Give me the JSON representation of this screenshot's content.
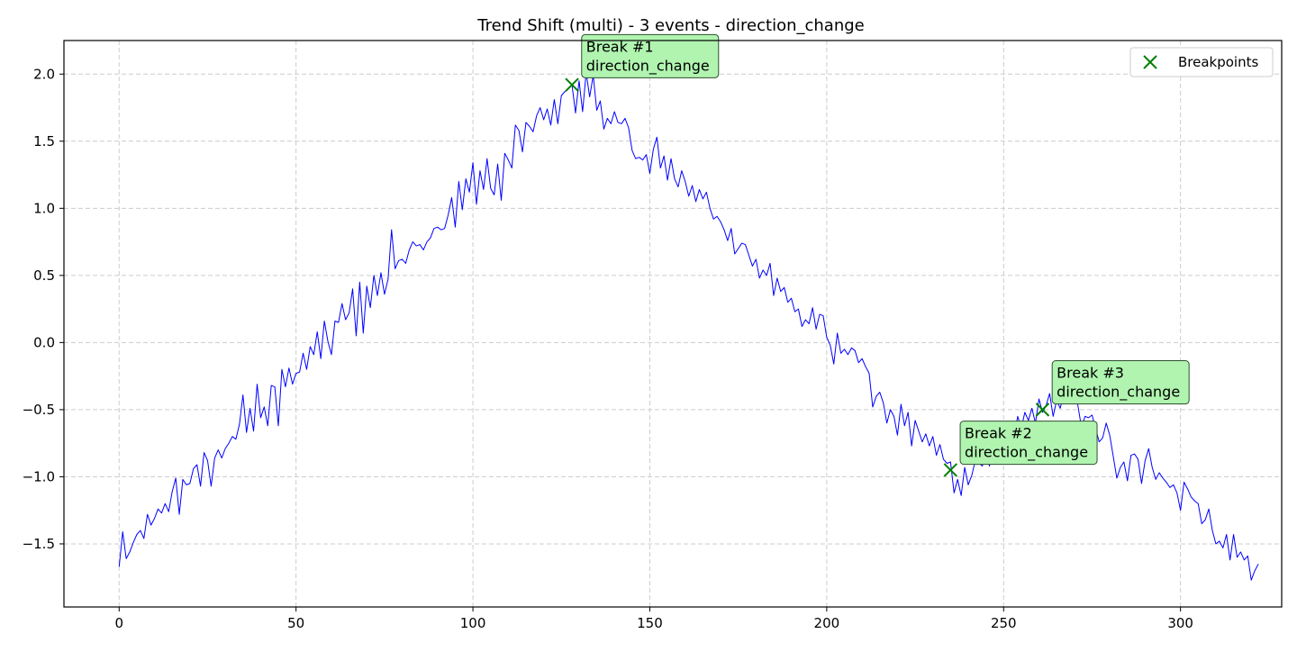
{
  "chart_data": {
    "type": "line",
    "title": "Trend Shift (multi) - 3 events - direction_change",
    "xlabel": "",
    "ylabel": "",
    "xlim": [
      -15.6,
      328.6
    ],
    "ylim": [
      -1.97,
      2.25
    ],
    "x_ticks": [
      0,
      50,
      100,
      150,
      200,
      250,
      300
    ],
    "y_ticks": [
      -1.5,
      -1.0,
      -0.5,
      0.0,
      0.5,
      1.0,
      1.5,
      2.0
    ],
    "y_tick_labels": [
      "−1.5",
      "−1.0",
      "−0.5",
      "0.0",
      "0.5",
      "1.0",
      "1.5",
      "2.0"
    ],
    "grid": true,
    "legend": {
      "position": "top-right",
      "entries": [
        {
          "label": "Breakpoints",
          "marker": "x",
          "color": "#008000"
        }
      ]
    },
    "series": [
      {
        "color": "#0000ff",
        "x_start": 0,
        "x_step": 1,
        "values": [
          -1.67,
          -1.41,
          -1.61,
          -1.56,
          -1.49,
          -1.43,
          -1.4,
          -1.46,
          -1.28,
          -1.36,
          -1.31,
          -1.24,
          -1.27,
          -1.2,
          -1.26,
          -1.11,
          -1.01,
          -1.28,
          -1.02,
          -1.06,
          -1.05,
          -0.94,
          -0.91,
          -1.07,
          -0.82,
          -0.88,
          -1.07,
          -0.86,
          -0.8,
          -0.86,
          -0.79,
          -0.75,
          -0.7,
          -0.72,
          -0.61,
          -0.39,
          -0.67,
          -0.49,
          -0.66,
          -0.31,
          -0.56,
          -0.48,
          -0.62,
          -0.32,
          -0.33,
          -0.62,
          -0.2,
          -0.33,
          -0.19,
          -0.31,
          -0.23,
          -0.22,
          -0.08,
          -0.2,
          -0.03,
          -0.09,
          0.08,
          -0.12,
          0.16,
          0.01,
          -0.09,
          0.16,
          0.15,
          0.29,
          0.17,
          0.22,
          0.4,
          0.05,
          0.45,
          0.07,
          0.42,
          0.26,
          0.5,
          0.35,
          0.52,
          0.36,
          0.47,
          0.84,
          0.55,
          0.61,
          0.62,
          0.59,
          0.69,
          0.75,
          0.72,
          0.73,
          0.69,
          0.75,
          0.78,
          0.85,
          0.86,
          0.84,
          0.85,
          0.95,
          1.08,
          0.86,
          1.2,
          0.99,
          1.22,
          1.12,
          1.34,
          1.03,
          1.28,
          1.14,
          1.37,
          1.15,
          1.1,
          1.33,
          1.06,
          1.41,
          1.36,
          1.3,
          1.62,
          1.58,
          1.42,
          1.64,
          1.61,
          1.57,
          1.69,
          1.75,
          1.66,
          1.74,
          1.62,
          1.81,
          1.63,
          1.84,
          1.87,
          1.89,
          1.92,
          1.71,
          1.95,
          1.72,
          2.01,
          1.83,
          1.99,
          1.73,
          1.8,
          1.59,
          1.67,
          1.63,
          1.72,
          1.64,
          1.63,
          1.67,
          1.6,
          1.43,
          1.37,
          1.38,
          1.36,
          1.4,
          1.26,
          1.44,
          1.53,
          1.3,
          1.39,
          1.21,
          1.37,
          1.22,
          1.16,
          1.28,
          1.2,
          1.09,
          1.17,
          1.05,
          1.14,
          1.07,
          1.12,
          1.0,
          0.92,
          0.94,
          0.9,
          0.84,
          0.76,
          0.85,
          0.66,
          0.7,
          0.74,
          0.73,
          0.65,
          0.57,
          0.62,
          0.48,
          0.54,
          0.5,
          0.59,
          0.35,
          0.48,
          0.38,
          0.41,
          0.3,
          0.33,
          0.23,
          0.25,
          0.12,
          0.17,
          0.14,
          0.26,
          0.1,
          0.21,
          0.2,
          0.04,
          -0.02,
          -0.16,
          0.07,
          -0.08,
          -0.05,
          -0.09,
          -0.04,
          -0.06,
          -0.15,
          -0.12,
          -0.18,
          -0.23,
          -0.48,
          -0.4,
          -0.37,
          -0.45,
          -0.6,
          -0.5,
          -0.55,
          -0.69,
          -0.46,
          -0.62,
          -0.52,
          -0.77,
          -0.58,
          -0.66,
          -0.74,
          -0.68,
          -0.77,
          -0.7,
          -0.84,
          -0.76,
          -0.87,
          -0.9,
          -0.89,
          -1.12,
          -1.02,
          -1.14,
          -0.93,
          -1.06,
          -0.99,
          -0.88,
          -0.9,
          -0.92,
          -0.79,
          -0.92,
          -0.73,
          -0.8,
          -0.77,
          -0.66,
          -0.7,
          -0.62,
          -0.68,
          -0.55,
          -0.64,
          -0.52,
          -0.58,
          -0.49,
          -0.6,
          -0.42,
          -0.52,
          -0.47,
          -0.38,
          -0.55,
          -0.43,
          -0.49,
          -0.38,
          -0.31,
          -0.42,
          -0.35,
          -0.47,
          -0.63,
          -0.55,
          -0.56,
          -0.54,
          -0.64,
          -0.74,
          -0.71,
          -0.6,
          -0.69,
          -0.85,
          -1.01,
          -0.93,
          -0.89,
          -1.03,
          -0.84,
          -0.83,
          -0.87,
          -1.05,
          -0.88,
          -0.79,
          -0.93,
          -1.02,
          -0.97,
          -1.01,
          -1.04,
          -1.08,
          -1.06,
          -1.12,
          -1.25,
          -1.04,
          -1.09,
          -1.15,
          -1.18,
          -1.2,
          -1.35,
          -1.32,
          -1.24,
          -1.4,
          -1.5,
          -1.48,
          -1.53,
          -1.43,
          -1.62,
          -1.43,
          -1.6,
          -1.56,
          -1.62,
          -1.59,
          -1.77,
          -1.7,
          -1.65
        ]
      }
    ],
    "breakpoints": [
      {
        "x": 128,
        "y": 1.92,
        "label_line1": "Break #1",
        "label_line2": "direction_change",
        "box_anchor": [
          132,
          2.06
        ]
      },
      {
        "x": 235,
        "y": -0.95,
        "label_line1": "Break #2",
        "label_line2": "direction_change",
        "box_anchor": [
          239,
          -0.82
        ]
      },
      {
        "x": 261,
        "y": -0.5,
        "label_line1": "Break #3",
        "label_line2": "direction_change",
        "box_anchor": [
          265,
          -0.37
        ]
      }
    ],
    "colors": {
      "line": "#0000ff",
      "marker": "#008000",
      "label_box_fill": "#b0f4b0",
      "label_box_edge": "#2f4f2f",
      "grid": "#cccccc"
    }
  }
}
